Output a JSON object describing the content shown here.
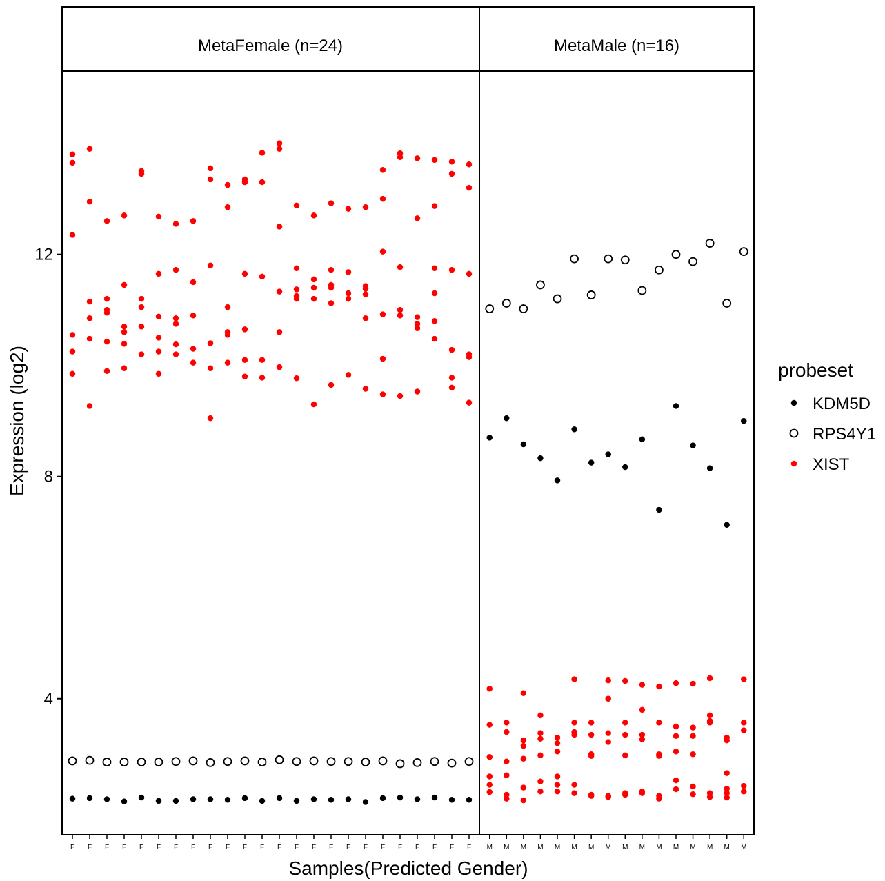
{
  "chart_data": {
    "type": "scatter",
    "title": "",
    "xlabel": "Samples(Predicted Gender)",
    "ylabel": "Expression (log2)",
    "y_ticks": [
      4,
      8,
      12
    ],
    "ylim": [
      1.55,
      15.3
    ],
    "grid": false,
    "legend": {
      "title": "probeset",
      "placement": "right",
      "entries": [
        {
          "name": "KDM5D",
          "style": "filled",
          "color": "#000000"
        },
        {
          "name": "RPS4Y1",
          "style": "open",
          "color": "#000000"
        },
        {
          "name": "XIST",
          "style": "filled",
          "color": "#ff0000"
        }
      ]
    },
    "panels": [
      {
        "label": "MetaFemale (n=24)",
        "x_tick_labels": [
          "F",
          "F",
          "F",
          "F",
          "F",
          "F",
          "F",
          "F",
          "F",
          "F",
          "F",
          "F",
          "F",
          "F",
          "F",
          "F",
          "F",
          "F",
          "F",
          "F",
          "F",
          "F",
          "F",
          "F"
        ],
        "series": [
          {
            "name": "KDM5D",
            "values": [
              [
                2.2
              ],
              [
                2.21
              ],
              [
                2.19
              ],
              [
                2.15
              ],
              [
                2.22
              ],
              [
                2.16
              ],
              [
                2.16
              ],
              [
                2.19
              ],
              [
                2.19
              ],
              [
                2.18
              ],
              [
                2.21
              ],
              [
                2.16
              ],
              [
                2.21
              ],
              [
                2.16
              ],
              [
                2.19
              ],
              [
                2.18
              ],
              [
                2.19
              ],
              [
                2.14
              ],
              [
                2.21
              ],
              [
                2.22
              ],
              [
                2.19
              ],
              [
                2.22
              ],
              [
                2.18
              ],
              [
                2.18
              ]
            ]
          },
          {
            "name": "RPS4Y1",
            "values": [
              [
                2.88
              ],
              [
                2.89
              ],
              [
                2.86
              ],
              [
                2.86
              ],
              [
                2.86
              ],
              [
                2.86
              ],
              [
                2.87
              ],
              [
                2.88
              ],
              [
                2.85
              ],
              [
                2.87
              ],
              [
                2.88
              ],
              [
                2.86
              ],
              [
                2.9
              ],
              [
                2.87
              ],
              [
                2.88
              ],
              [
                2.87
              ],
              [
                2.87
              ],
              [
                2.86
              ],
              [
                2.88
              ],
              [
                2.83
              ],
              [
                2.85
              ],
              [
                2.87
              ],
              [
                2.84
              ],
              [
                2.87
              ]
            ]
          },
          {
            "name": "XIST",
            "values": [
              [
                13.8,
                13.65,
                12.35,
                10.55,
                10.25,
                9.85
              ],
              [
                13.9,
                12.95,
                11.15,
                10.85,
                10.48,
                9.27
              ],
              [
                12.6,
                11.2,
                11.0,
                10.95,
                10.43,
                9.9
              ],
              [
                12.7,
                11.45,
                10.7,
                10.6,
                10.39,
                9.95
              ],
              [
                13.5,
                13.45,
                11.2,
                11.05,
                10.7,
                10.2
              ],
              [
                12.68,
                11.65,
                10.88,
                10.5,
                10.25,
                9.85
              ],
              [
                12.55,
                11.72,
                10.85,
                10.75,
                10.38,
                10.2
              ],
              [
                12.6,
                11.5,
                10.9,
                10.3,
                10.05
              ],
              [
                13.55,
                13.35,
                11.8,
                10.4,
                9.95,
                9.05
              ],
              [
                13.25,
                12.85,
                11.05,
                10.6,
                10.55,
                10.05
              ],
              [
                13.35,
                13.3,
                11.65,
                10.65,
                10.1,
                9.8
              ],
              [
                13.83,
                13.3,
                11.6,
                10.1,
                9.78
              ],
              [
                14.0,
                13.9,
                12.5,
                11.33,
                10.6,
                9.97
              ],
              [
                12.88,
                11.75,
                11.37,
                11.25,
                11.2,
                9.77
              ],
              [
                12.7,
                11.55,
                11.4,
                11.2,
                9.3
              ],
              [
                12.92,
                11.72,
                11.45,
                11.4,
                11.12,
                9.65
              ],
              [
                12.82,
                11.68,
                11.3,
                11.2,
                9.83
              ],
              [
                12.85,
                11.43,
                11.38,
                11.28,
                10.85,
                9.58
              ],
              [
                13.52,
                13.0,
                12.05,
                10.92,
                10.12,
                9.48
              ],
              [
                13.82,
                13.75,
                11.77,
                11.0,
                10.9,
                9.45
              ],
              [
                13.73,
                12.65,
                10.87,
                10.75,
                10.67,
                9.53
              ],
              [
                13.7,
                12.87,
                11.75,
                11.3,
                10.8,
                10.48
              ],
              [
                13.67,
                13.45,
                11.72,
                10.28,
                9.78,
                9.6
              ],
              [
                13.62,
                13.2,
                11.65,
                10.2,
                10.15,
                9.33
              ]
            ]
          }
        ]
      },
      {
        "label": "MetaMale (n=16)",
        "x_tick_labels": [
          "M",
          "M",
          "M",
          "M",
          "M",
          "M",
          "M",
          "M",
          "M",
          "M",
          "M",
          "M",
          "M",
          "M",
          "M",
          "M"
        ],
        "series": [
          {
            "name": "KDM5D",
            "values": [
              [
                8.7
              ],
              [
                9.05
              ],
              [
                8.58
              ],
              [
                8.33
              ],
              [
                7.93
              ],
              [
                8.85
              ],
              [
                8.25
              ],
              [
                8.4
              ],
              [
                8.17
              ],
              [
                8.67
              ],
              [
                7.4
              ],
              [
                9.27
              ],
              [
                8.56
              ],
              [
                8.15
              ],
              [
                7.13
              ],
              [
                9.0
              ]
            ]
          },
          {
            "name": "RPS4Y1",
            "values": [
              [
                11.02
              ],
              [
                11.12
              ],
              [
                11.02
              ],
              [
                11.45
              ],
              [
                11.2
              ],
              [
                11.92
              ],
              [
                11.27
              ],
              [
                11.92
              ],
              [
                11.9
              ],
              [
                11.35
              ],
              [
                11.72
              ],
              [
                12.0
              ],
              [
                11.87
              ],
              [
                12.2
              ],
              [
                11.12
              ],
              [
                12.05
              ]
            ]
          },
          {
            "name": "XIST",
            "values": [
              [
                4.18,
                3.53,
                2.95,
                2.6,
                2.45,
                2.32
              ],
              [
                3.57,
                3.4,
                2.87,
                2.62,
                2.27,
                2.2
              ],
              [
                4.1,
                3.25,
                3.15,
                2.92,
                2.4,
                2.17
              ],
              [
                3.7,
                3.38,
                3.28,
                2.98,
                2.51,
                2.33
              ],
              [
                3.3,
                3.2,
                3.05,
                2.6,
                2.45,
                2.33
              ],
              [
                4.35,
                3.57,
                3.4,
                3.35,
                2.45,
                2.3
              ],
              [
                3.57,
                3.35,
                3.0,
                2.97,
                2.27,
                2.25
              ],
              [
                4.33,
                4.0,
                3.38,
                3.22,
                2.25,
                2.23
              ],
              [
                4.32,
                3.57,
                3.35,
                2.98,
                2.3,
                2.27
              ],
              [
                4.25,
                3.8,
                3.35,
                3.27,
                2.33,
                2.3
              ],
              [
                4.22,
                3.57,
                3.0,
                2.97,
                2.25,
                2.2
              ],
              [
                4.28,
                3.5,
                3.33,
                3.05,
                2.53,
                2.37
              ],
              [
                4.27,
                3.48,
                3.33,
                3.0,
                2.42,
                2.28
              ],
              [
                4.37,
                3.7,
                3.6,
                3.57,
                2.3,
                2.23
              ],
              [
                3.3,
                3.25,
                2.66,
                2.38,
                2.3,
                2.22
              ],
              [
                4.35,
                3.57,
                3.43,
                2.43,
                2.33
              ]
            ]
          }
        ]
      }
    ]
  }
}
